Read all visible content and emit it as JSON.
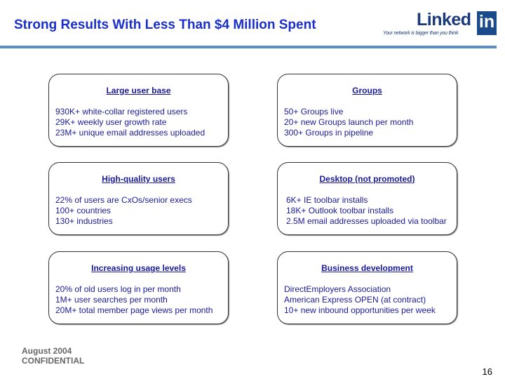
{
  "header": {
    "title": "Strong Results With Less Than $4 Million Spent",
    "logo_word": "Linked",
    "logo_in": "in",
    "logo_tagline": "Your network is bigger than you think",
    "rule_color": "#5b8cc8"
  },
  "boxes": [
    {
      "heading": "Large user base",
      "items": [
        "930K+ white-collar registered users",
        "29K+ weekly user growth rate",
        "23M+ unique email addresses uploaded"
      ]
    },
    {
      "heading": "Groups",
      "items": [
        "50+ Groups live",
        "20+ new Groups launch per month",
        "300+ Groups in pipeline"
      ]
    },
    {
      "heading": "High-quality users",
      "items": [
        "22% of users are CxOs/senior execs",
        "100+ countries",
        "130+ industries"
      ]
    },
    {
      "heading": "Desktop (not promoted)",
      "items": [
        "6K+ IE toolbar installs",
        "18K+ Outlook toolbar installs",
        "2.5M email addresses uploaded via toolbar"
      ]
    },
    {
      "heading": "Increasing usage levels",
      "items": [
        "20% of old users log in per month",
        "1M+ user searches per month",
        "20M+ total member page views per month"
      ]
    },
    {
      "heading": "Business development",
      "items": [
        "DirectEmployers Association",
        "American Express OPEN (at contract)",
        "10+ new inbound opportunities per week"
      ]
    }
  ],
  "footer": {
    "date": "August 2004",
    "confidential": "CONFIDENTIAL",
    "page_number": "16"
  }
}
